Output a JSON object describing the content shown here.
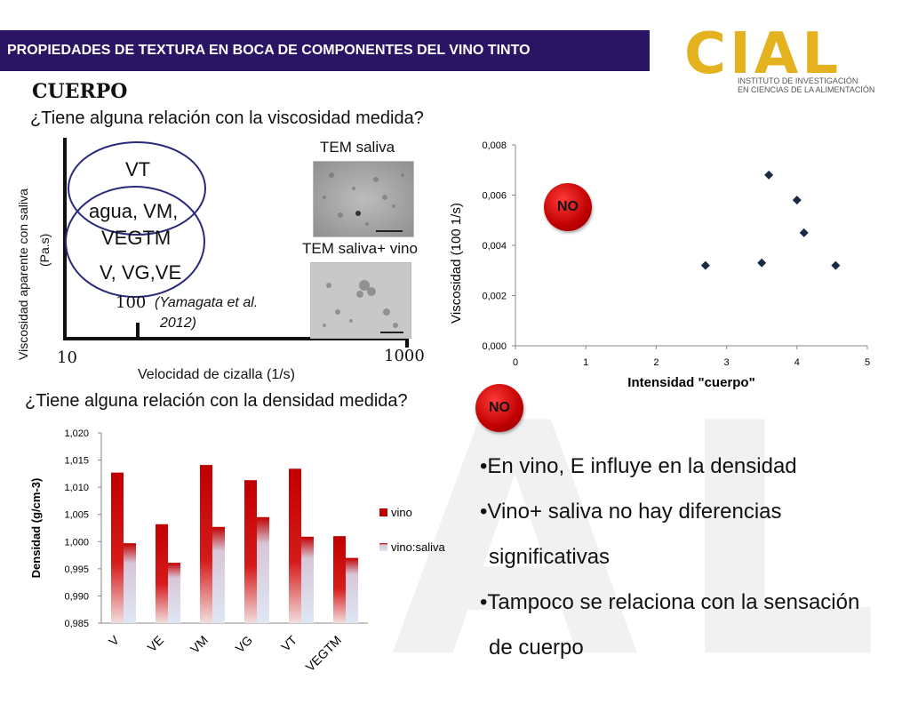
{
  "header": {
    "title": "PROPIEDADES DE TEXTURA EN BOCA DE COMPONENTES DEL VINO TINTO"
  },
  "logo": {
    "letters": "CIAL",
    "line1": "INSTITUTO DE INVESTIGACIÓN",
    "line2": "EN CIENCIAS DE LA ALIMENTACIÓN",
    "color": "#e3b21e"
  },
  "section": {
    "title": "CUERPO"
  },
  "question1": "¿Tiene alguna relación con la viscosidad medida?",
  "question2": "¿Tiene alguna relación con la densidad medida?",
  "venn": {
    "ylabel_line1": "Viscosidad aparente con saliva",
    "ylabel_line2": "(Pa.s)",
    "xlabel": "Velocidad de cizalla (1/s)",
    "top_label": "VT",
    "middle_label_1": "agua, VM,",
    "middle_label_2": "VEGTM",
    "bottom_label": "V, VG,VE",
    "tick_10": "10",
    "tick_100": "100",
    "tick_1000": "1000",
    "citation_1": "(Yamagata et al.",
    "citation_2": "2012)"
  },
  "tem": {
    "label_saliva": "TEM saliva",
    "label_saliva_vino": "TEM saliva+ vino"
  },
  "badge": {
    "no": "NO"
  },
  "bullets": [
    "•En vino, E influye en la densidad",
    "•Vino+ saliva no hay diferencias",
    "significativas",
    "•Tampoco se relaciona con la sensación",
    "de cuerpo"
  ],
  "chart_data": [
    {
      "type": "scatter",
      "xlabel": "Intensidad \"cuerpo\"",
      "ylabel": "Viscosidad (100 1/s)",
      "xlim": [
        0,
        5
      ],
      "ylim": [
        0,
        0.008
      ],
      "x_ticks": [
        "0",
        "1",
        "2",
        "3",
        "4",
        "5"
      ],
      "y_ticks": [
        "0,000",
        "0,002",
        "0,004",
        "0,006",
        "0,008"
      ],
      "points": [
        {
          "x": 2.7,
          "y": 0.0032
        },
        {
          "x": 3.5,
          "y": 0.0033
        },
        {
          "x": 3.6,
          "y": 0.0068
        },
        {
          "x": 4.0,
          "y": 0.0058
        },
        {
          "x": 4.1,
          "y": 0.0045
        },
        {
          "x": 4.55,
          "y": 0.0032
        }
      ],
      "marker_color": "#1a2a44"
    },
    {
      "type": "bar",
      "ylabel": "Densidad (g/cm-3)",
      "categories": [
        "V",
        "VE",
        "VM",
        "VG",
        "VT",
        "VEGTM"
      ],
      "ylim": [
        0.985,
        1.02
      ],
      "y_ticks": [
        "0,985",
        "0,990",
        "0,995",
        "1,000",
        "1,005",
        "1,010",
        "1,015",
        "1,020"
      ],
      "series": [
        {
          "name": "vino",
          "values": [
            1.0127,
            1.0032,
            1.0141,
            1.0113,
            1.0134,
            1.001
          ],
          "color": "#c00000"
        },
        {
          "name": "vino:saliva",
          "values": [
            0.9997,
            0.9961,
            1.0027,
            1.0045,
            1.0009,
            0.997
          ],
          "color": "#c9d6ee"
        }
      ]
    }
  ]
}
